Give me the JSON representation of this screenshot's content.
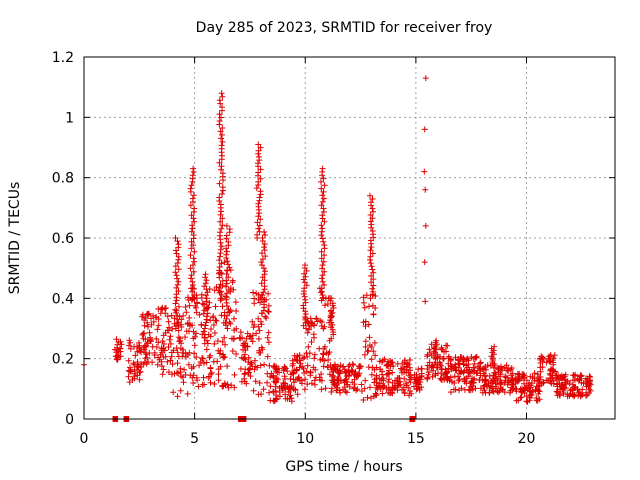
{
  "chart_data": {
    "type": "scatter",
    "title": "Day 285 of 2023, SRMTID for receiver froy",
    "xlabel": "GPS time / hours",
    "ylabel": "SRMTID / TECUs",
    "xlim": [
      0,
      24
    ],
    "ylim": [
      0,
      1.2
    ],
    "xticks": [
      0,
      5,
      10,
      15,
      20
    ],
    "yticks": [
      0,
      0.2,
      0.4,
      0.6,
      0.8,
      1.0,
      1.2
    ],
    "xtick_labels": [
      "0",
      "5",
      "10",
      "15",
      "20"
    ],
    "ytick_labels": [
      "0",
      "0.2",
      "0.4",
      "0.6",
      "0.8",
      "1",
      "1.2"
    ],
    "grid": true,
    "marker": "+",
    "color": "#e00000",
    "zero_markers_x": [
      1.38,
      1.45,
      1.88,
      1.95,
      7.05,
      7.15,
      7.25,
      14.8,
      14.88
    ],
    "isolated_points": [
      {
        "x": 0.0,
        "y": 0.18
      },
      {
        "x": 15.45,
        "y": 1.13
      },
      {
        "x": 15.4,
        "y": 0.96
      },
      {
        "x": 15.38,
        "y": 0.82
      },
      {
        "x": 15.42,
        "y": 0.76
      },
      {
        "x": 15.45,
        "y": 0.64
      },
      {
        "x": 15.4,
        "y": 0.52
      },
      {
        "x": 15.42,
        "y": 0.39
      }
    ],
    "segments": [
      {
        "t0": 1.4,
        "t1": 1.7,
        "base": 0.22,
        "spread": 0.06
      },
      {
        "t0": 2.0,
        "t1": 2.6,
        "base": 0.17,
        "spread": 0.12
      },
      {
        "t0": 2.6,
        "t1": 3.3,
        "base": 0.24,
        "spread": 0.14
      },
      {
        "t0": 3.3,
        "t1": 4.0,
        "base": 0.22,
        "spread": 0.2
      },
      {
        "t0": 4.0,
        "t1": 4.6,
        "base": 0.18,
        "spread": 0.25
      },
      {
        "t0": 4.6,
        "t1": 5.3,
        "base": 0.2,
        "spread": 0.3
      },
      {
        "t0": 5.3,
        "t1": 6.0,
        "base": 0.22,
        "spread": 0.28
      },
      {
        "t0": 6.0,
        "t1": 6.9,
        "base": 0.25,
        "spread": 0.35
      },
      {
        "t0": 7.0,
        "t1": 7.6,
        "base": 0.18,
        "spread": 0.15
      },
      {
        "t0": 7.6,
        "t1": 8.4,
        "base": 0.2,
        "spread": 0.3
      },
      {
        "t0": 8.4,
        "t1": 9.4,
        "base": 0.1,
        "spread": 0.1
      },
      {
        "t0": 9.4,
        "t1": 10.0,
        "base": 0.12,
        "spread": 0.12
      },
      {
        "t0": 10.0,
        "t1": 10.5,
        "base": 0.18,
        "spread": 0.2
      },
      {
        "t0": 10.5,
        "t1": 11.2,
        "base": 0.2,
        "spread": 0.3
      },
      {
        "t0": 11.2,
        "t1": 12.6,
        "base": 0.12,
        "spread": 0.08
      },
      {
        "t0": 12.6,
        "t1": 13.2,
        "base": 0.18,
        "spread": 0.3
      },
      {
        "t0": 13.2,
        "t1": 14.8,
        "base": 0.12,
        "spread": 0.1
      },
      {
        "t0": 14.9,
        "t1": 15.3,
        "base": 0.12,
        "spread": 0.06
      },
      {
        "t0": 15.5,
        "t1": 16.5,
        "base": 0.17,
        "spread": 0.1
      },
      {
        "t0": 16.5,
        "t1": 18.0,
        "base": 0.13,
        "spread": 0.1
      },
      {
        "t0": 18.0,
        "t1": 19.4,
        "base": 0.12,
        "spread": 0.08
      },
      {
        "t0": 19.4,
        "t1": 20.6,
        "base": 0.09,
        "spread": 0.08
      },
      {
        "t0": 20.6,
        "t1": 21.3,
        "base": 0.15,
        "spread": 0.08
      },
      {
        "t0": 21.3,
        "t1": 22.9,
        "base": 0.1,
        "spread": 0.06
      }
    ],
    "peaks": [
      {
        "t": 4.2,
        "min": 0.3,
        "max": 0.6
      },
      {
        "t": 4.9,
        "min": 0.4,
        "max": 0.83
      },
      {
        "t": 5.5,
        "min": 0.25,
        "max": 0.48
      },
      {
        "t": 6.2,
        "min": 0.4,
        "max": 1.08
      },
      {
        "t": 6.5,
        "min": 0.3,
        "max": 0.64
      },
      {
        "t": 7.9,
        "min": 0.6,
        "max": 0.91
      },
      {
        "t": 8.1,
        "min": 0.35,
        "max": 0.62
      },
      {
        "t": 10.0,
        "min": 0.3,
        "max": 0.51
      },
      {
        "t": 10.8,
        "min": 0.4,
        "max": 0.83
      },
      {
        "t": 11.2,
        "min": 0.28,
        "max": 0.4
      },
      {
        "t": 13.0,
        "min": 0.4,
        "max": 0.74
      },
      {
        "t": 15.9,
        "min": 0.2,
        "max": 0.26
      },
      {
        "t": 18.5,
        "min": 0.17,
        "max": 0.24
      }
    ]
  }
}
